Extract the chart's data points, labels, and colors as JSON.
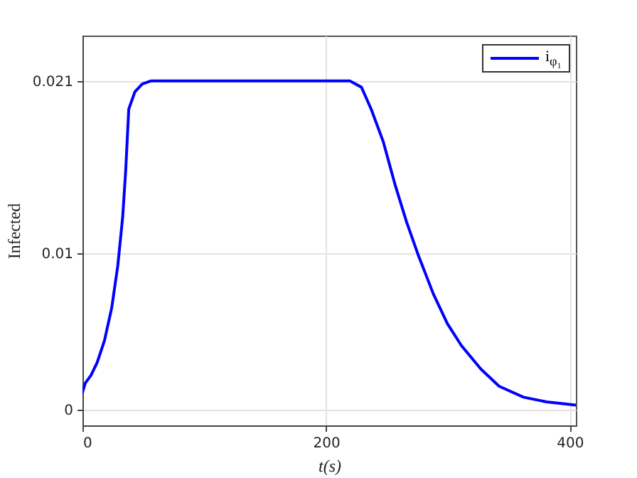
{
  "chart_data": {
    "type": "line",
    "xlabel": "t(s)",
    "ylabel": "Infected",
    "xlim": [
      0,
      405
    ],
    "ylim": [
      -0.001,
      0.0239
    ],
    "xticks": [
      0,
      200,
      400
    ],
    "yticks": [
      0,
      0.01,
      0.021
    ],
    "grid": true,
    "legend": "top right",
    "series": [
      {
        "name": "i$_{φ₁}$",
        "color": "#0000ff",
        "x": [
          0,
          2.3,
          7,
          12,
          18,
          24,
          29,
          33,
          35.5,
          38,
          43,
          49,
          56,
          219.5,
          229,
          237,
          247,
          256.5,
          266,
          276,
          288,
          299.5,
          311,
          327,
          342,
          362,
          381,
          405
        ],
        "values": [
          0.0011,
          0.0017,
          0.0022,
          0.003,
          0.0044,
          0.0065,
          0.0092,
          0.0123,
          0.0153,
          0.0192,
          0.0203,
          0.0208,
          0.021,
          0.021,
          0.0206,
          0.0192,
          0.0171,
          0.0144,
          0.012,
          0.0098,
          0.0074,
          0.0055,
          0.0041,
          0.0026,
          0.0015,
          0.0008,
          0.0005,
          0.0003
        ]
      }
    ]
  }
}
